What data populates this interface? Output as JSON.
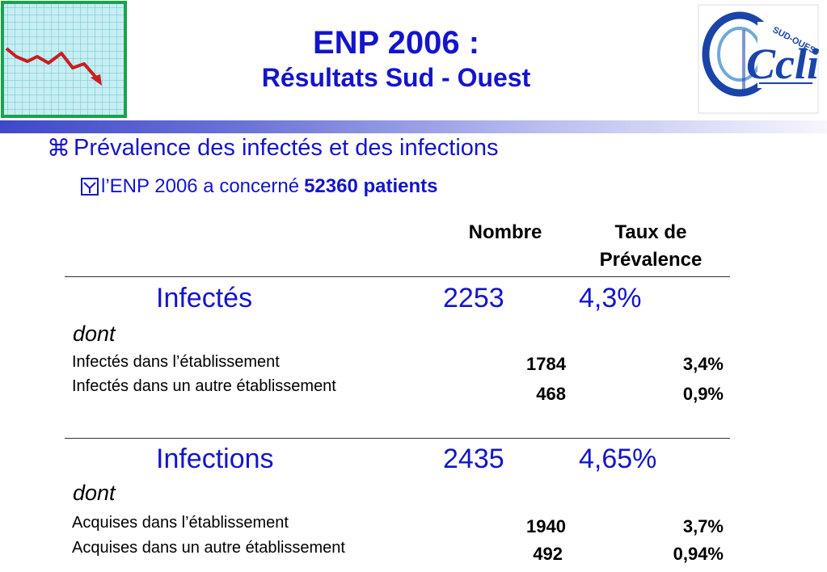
{
  "title": {
    "main": "ENP 2006 :",
    "sub": "Résultats Sud - Ouest"
  },
  "logos": {
    "cclin_text": "Cclin",
    "cclin_region": "SUD-OUEST"
  },
  "bullets": {
    "level1": "Prévalence des infectés et des infections",
    "level2_prefix": "l’ENP 2006 a concerné",
    "level2_bold": "52360 patients"
  },
  "table": {
    "headers": {
      "nombre": "Nombre",
      "taux_line1": "Taux de",
      "taux_line2": "Prévalence"
    },
    "sections": [
      {
        "label": "Infectés",
        "nombre": "2253",
        "taux": "4,3%",
        "dont": "dont",
        "rows": [
          {
            "label": "Infectés dans l’établissement",
            "nombre": "1784",
            "taux": "3,4%"
          },
          {
            "label": "Infectés dans un autre établissement",
            "nombre": "468",
            "taux": "0,9%"
          }
        ]
      },
      {
        "label": "Infections",
        "nombre": "2435",
        "taux": "4,65%",
        "dont": "dont",
        "rows": [
          {
            "label": "Acquises dans l’établissement",
            "nombre": "1940",
            "taux": "3,7%"
          },
          {
            "label": "Acquises dans un autre établissement",
            "nombre": "492",
            "taux": "0,94%"
          }
        ]
      }
    ]
  }
}
